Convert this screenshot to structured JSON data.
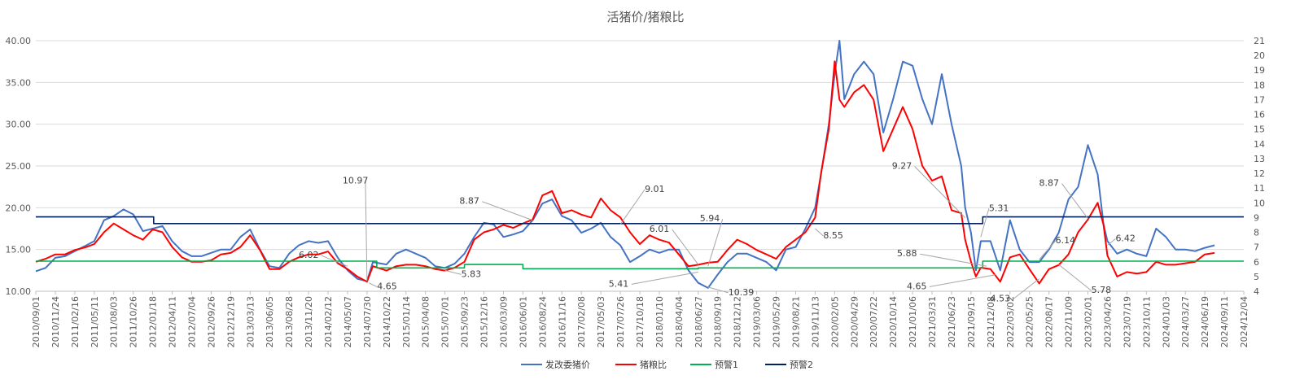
{
  "chart_data": {
    "type": "line",
    "title": "活猪价/猪粮比",
    "left_axis": {
      "min": 10,
      "max": 40,
      "ticks": [
        "10.00",
        "15.00",
        "20.00",
        "25.00",
        "30.00",
        "35.00",
        "40.00"
      ]
    },
    "right_axis": {
      "min": 4,
      "max": 21,
      "ticks": [
        "4",
        "5",
        "6",
        "7",
        "8",
        "9",
        "10",
        "11",
        "12",
        "13",
        "14",
        "15",
        "16",
        "17",
        "18",
        "19",
        "20",
        "21"
      ]
    },
    "x_ticks": [
      "2010/09/01",
      "2010/11/24",
      "2011/02/16",
      "2011/05/11",
      "2011/08/03",
      "2011/10/26",
      "2012/01/18",
      "2012/04/11",
      "2012/07/04",
      "2012/09/26",
      "2012/12/19",
      "2013/03/13",
      "2013/06/05",
      "2013/08/28",
      "2013/11/20",
      "2014/02/12",
      "2014/05/07",
      "2014/07/30",
      "2014/10/22",
      "2015/01/14",
      "2015/04/08",
      "2015/07/01",
      "2015/09/23",
      "2015/12/16",
      "2016/03/09",
      "2016/06/01",
      "2016/08/24",
      "2016/11/16",
      "2017/02/08",
      "2017/05/03",
      "2017/07/26",
      "2017/10/18",
      "2018/01/10",
      "2018/04/04",
      "2018/06/27",
      "2018/09/19",
      "2018/12/12",
      "2019/03/06",
      "2019/05/29",
      "2019/08/21",
      "2019/11/13",
      "2020/02/05",
      "2020/04/29",
      "2020/07/22",
      "2020/10/14",
      "2021/01/06",
      "2021/03/31",
      "2021/06/23",
      "2021/09/15",
      "2021/12/08",
      "2022/03/02",
      "2022/05/25",
      "2022/08/17",
      "2022/11/09",
      "2023/02/01",
      "2023/04/26",
      "2023/07/19",
      "2023/10/11",
      "2024/01/03",
      "2024/03/27",
      "2024/06/19",
      "2024/09/11",
      "2024/12/04"
    ],
    "grid": "horizontal",
    "legend_position": "bottom",
    "series": [
      {
        "name": "发改委猪价",
        "axis": "left",
        "color": "#4472C4",
        "points": [
          [
            0,
            12.4
          ],
          [
            0.5,
            12.8
          ],
          [
            1,
            14
          ],
          [
            1.5,
            14.2
          ],
          [
            2,
            14.8
          ],
          [
            2.6,
            15.5
          ],
          [
            3,
            16
          ],
          [
            3.5,
            18.5
          ],
          [
            4,
            19
          ],
          [
            4.5,
            19.8
          ],
          [
            5,
            19.2
          ],
          [
            5.5,
            17.2
          ],
          [
            6,
            17.5
          ],
          [
            6.5,
            17.8
          ],
          [
            7,
            16
          ],
          [
            7.5,
            14.8
          ],
          [
            8,
            14.2
          ],
          [
            8.5,
            14.2
          ],
          [
            9,
            14.6
          ],
          [
            9.5,
            15
          ],
          [
            10,
            15
          ],
          [
            10.5,
            16.5
          ],
          [
            11,
            17.4
          ],
          [
            11.5,
            15
          ],
          [
            12,
            13
          ],
          [
            12.5,
            12.8
          ],
          [
            13,
            14.5
          ],
          [
            13.5,
            15.5
          ],
          [
            14,
            16
          ],
          [
            14.5,
            15.8
          ],
          [
            15,
            16
          ],
          [
            15.5,
            14
          ],
          [
            16,
            12.5
          ],
          [
            16.5,
            11.5
          ],
          [
            17,
            11.2
          ],
          [
            17.3,
            13.5
          ],
          [
            18,
            13.2
          ],
          [
            18.5,
            14.5
          ],
          [
            19,
            15
          ],
          [
            19.5,
            14.5
          ],
          [
            20,
            14
          ],
          [
            20.5,
            13
          ],
          [
            21,
            12.8
          ],
          [
            21.5,
            13.3
          ],
          [
            22,
            14.5
          ],
          [
            22.5,
            16.5
          ],
          [
            23,
            18.2
          ],
          [
            23.5,
            18
          ],
          [
            24,
            16.5
          ],
          [
            24.5,
            16.8
          ],
          [
            25,
            17.2
          ],
          [
            25.5,
            18.5
          ],
          [
            26,
            20.5
          ],
          [
            26.5,
            21
          ],
          [
            27,
            19
          ],
          [
            27.5,
            18.5
          ],
          [
            28,
            17
          ],
          [
            28.5,
            17.5
          ],
          [
            29,
            18.2
          ],
          [
            29.5,
            16.5
          ],
          [
            30,
            15.5
          ],
          [
            30.5,
            13.5
          ],
          [
            31,
            14.2
          ],
          [
            31.5,
            15
          ],
          [
            32,
            14.6
          ],
          [
            32.5,
            15
          ],
          [
            33,
            15
          ],
          [
            33.5,
            12.5
          ],
          [
            34,
            11
          ],
          [
            34.5,
            10.4
          ],
          [
            35,
            12
          ],
          [
            35.5,
            13.5
          ],
          [
            36,
            14.5
          ],
          [
            36.5,
            14.5
          ],
          [
            37,
            14
          ],
          [
            37.5,
            13.5
          ],
          [
            38,
            12.5
          ],
          [
            38.5,
            15
          ],
          [
            39,
            15.3
          ],
          [
            39.5,
            17.5
          ],
          [
            40,
            20
          ],
          [
            40.3,
            24
          ],
          [
            40.7,
            30
          ],
          [
            41,
            36
          ],
          [
            41.25,
            40
          ],
          [
            41.5,
            33
          ],
          [
            42,
            36
          ],
          [
            42.5,
            37.5
          ],
          [
            43,
            36
          ],
          [
            43.5,
            29
          ],
          [
            44,
            33
          ],
          [
            44.5,
            37.5
          ],
          [
            45,
            37
          ],
          [
            45.5,
            33
          ],
          [
            46,
            30
          ],
          [
            46.5,
            36
          ],
          [
            47,
            30
          ],
          [
            47.5,
            25
          ],
          [
            47.7,
            20
          ],
          [
            48,
            17
          ],
          [
            48.25,
            12.5
          ],
          [
            48.5,
            16
          ],
          [
            49,
            16
          ],
          [
            49.5,
            12.5
          ],
          [
            50,
            18.5
          ],
          [
            50.5,
            15
          ],
          [
            51,
            13.5
          ],
          [
            51.5,
            13.5
          ],
          [
            52,
            15
          ],
          [
            52.5,
            17
          ],
          [
            53,
            21
          ],
          [
            53.5,
            22.5
          ],
          [
            54,
            27.5
          ],
          [
            54.5,
            24
          ],
          [
            54.8,
            18
          ],
          [
            55,
            16
          ],
          [
            55.5,
            14.5
          ],
          [
            56,
            15
          ],
          [
            56.5,
            14.5
          ],
          [
            57,
            14.2
          ],
          [
            57.5,
            17.5
          ],
          [
            58,
            16.5
          ],
          [
            58.5,
            15
          ],
          [
            59,
            15
          ],
          [
            59.5,
            14.8
          ],
          [
            60,
            15.2
          ],
          [
            60.5,
            15.5
          ]
        ]
      },
      {
        "name": "猪粮比",
        "axis": "right",
        "color": "#FF0000",
        "points": [
          [
            0,
            6.0
          ],
          [
            0.5,
            6.2
          ],
          [
            1,
            6.5
          ],
          [
            1.5,
            6.5
          ],
          [
            2,
            6.8
          ],
          [
            2.6,
            7.0
          ],
          [
            3,
            7.2
          ],
          [
            3.5,
            8.0
          ],
          [
            4,
            8.6
          ],
          [
            4.5,
            8.2
          ],
          [
            5,
            7.8
          ],
          [
            5.5,
            7.5
          ],
          [
            6,
            8.2
          ],
          [
            6.5,
            8.0
          ],
          [
            7,
            7.0
          ],
          [
            7.5,
            6.3
          ],
          [
            8,
            6.0
          ],
          [
            8.5,
            6.0
          ],
          [
            9,
            6.1
          ],
          [
            9.5,
            6.5
          ],
          [
            10,
            6.6
          ],
          [
            10.5,
            7.0
          ],
          [
            11,
            7.8
          ],
          [
            11.5,
            6.8
          ],
          [
            12,
            5.5
          ],
          [
            12.5,
            5.5
          ],
          [
            13,
            6.0
          ],
          [
            13.5,
            6.3
          ],
          [
            14,
            6.5
          ],
          [
            14.5,
            6.5
          ],
          [
            15,
            6.7
          ],
          [
            15.5,
            5.9
          ],
          [
            16,
            5.5
          ],
          [
            16.5,
            5.0
          ],
          [
            17,
            4.65
          ],
          [
            17.3,
            5.7
          ],
          [
            18,
            5.4
          ],
          [
            18.5,
            5.7
          ],
          [
            19,
            5.8
          ],
          [
            19.5,
            5.8
          ],
          [
            20,
            5.7
          ],
          [
            20.5,
            5.5
          ],
          [
            21,
            5.4
          ],
          [
            21.5,
            5.6
          ],
          [
            22,
            6.0
          ],
          [
            22.5,
            7.5
          ],
          [
            23,
            8.0
          ],
          [
            23.5,
            8.2
          ],
          [
            24,
            8.5
          ],
          [
            24.5,
            8.3
          ],
          [
            25,
            8.6
          ],
          [
            25.5,
            8.87
          ],
          [
            26,
            10.5
          ],
          [
            26.5,
            10.8
          ],
          [
            27,
            9.3
          ],
          [
            27.5,
            9.5
          ],
          [
            28,
            9.2
          ],
          [
            28.5,
            9.0
          ],
          [
            29,
            10.3
          ],
          [
            29.5,
            9.5
          ],
          [
            30,
            9.01
          ],
          [
            30.5,
            8.0
          ],
          [
            31,
            7.2
          ],
          [
            31.5,
            7.8
          ],
          [
            32,
            7.5
          ],
          [
            32.5,
            7.3
          ],
          [
            33,
            6.5
          ],
          [
            33.5,
            5.7
          ],
          [
            34,
            5.8
          ],
          [
            34.5,
            5.94
          ],
          [
            35,
            6.0
          ],
          [
            35.5,
            6.8
          ],
          [
            36,
            7.5
          ],
          [
            36.5,
            7.2
          ],
          [
            37,
            6.8
          ],
          [
            37.5,
            6.5
          ],
          [
            38,
            6.2
          ],
          [
            38.5,
            7.0
          ],
          [
            39,
            7.5
          ],
          [
            39.5,
            8.0
          ],
          [
            40,
            9.0
          ],
          [
            40.3,
            12
          ],
          [
            40.7,
            15
          ],
          [
            41,
            19.6
          ],
          [
            41.25,
            17
          ],
          [
            41.5,
            16.5
          ],
          [
            42,
            17.5
          ],
          [
            42.5,
            18.0
          ],
          [
            43,
            17
          ],
          [
            43.5,
            13.5
          ],
          [
            44,
            15
          ],
          [
            44.5,
            16.5
          ],
          [
            45,
            15
          ],
          [
            45.5,
            12.5
          ],
          [
            46,
            11.5
          ],
          [
            46.5,
            11.8
          ],
          [
            47,
            9.5
          ],
          [
            47.5,
            9.3
          ],
          [
            47.7,
            7.5
          ],
          [
            48,
            6.0
          ],
          [
            48.25,
            5.0
          ],
          [
            48.5,
            5.6
          ],
          [
            49,
            5.5
          ],
          [
            49.5,
            4.65
          ],
          [
            50,
            6.3
          ],
          [
            50.5,
            6.5
          ],
          [
            51,
            5.5
          ],
          [
            51.5,
            4.53
          ],
          [
            52,
            5.5
          ],
          [
            52.5,
            5.78
          ],
          [
            53,
            6.5
          ],
          [
            53.5,
            8.0
          ],
          [
            54,
            8.87
          ],
          [
            54.5,
            10.0
          ],
          [
            54.8,
            8.5
          ],
          [
            55,
            6.42
          ],
          [
            55.5,
            5.0
          ],
          [
            56,
            5.3
          ],
          [
            56.5,
            5.2
          ],
          [
            57,
            5.3
          ],
          [
            57.5,
            6.0
          ],
          [
            58,
            5.8
          ],
          [
            58.5,
            5.8
          ],
          [
            59,
            5.9
          ],
          [
            59.5,
            6.0
          ],
          [
            60,
            6.5
          ],
          [
            60.5,
            6.6
          ]
        ]
      },
      {
        "name": "预警1",
        "axis": "left",
        "color": "#00B050",
        "segments": [
          [
            0,
            17.5,
            13.6
          ],
          [
            17.5,
            22,
            12.8
          ],
          [
            22,
            25,
            13.2
          ],
          [
            25,
            34,
            12.7
          ],
          [
            34,
            48.6,
            12.8
          ],
          [
            48.6,
            63,
            13.6
          ]
        ]
      },
      {
        "name": "预警2",
        "axis": "left",
        "color": "#002060",
        "segments": [
          [
            0,
            6.05,
            18.9
          ],
          [
            6.05,
            48.6,
            18.1
          ],
          [
            48.6,
            63,
            18.9
          ]
        ]
      }
    ],
    "annotations": [
      {
        "text": "10.97",
        "x": 17.0,
        "y": 11.2
      },
      {
        "text": "6.02",
        "x": 16.0,
        "y": 13.0
      },
      {
        "text": "4.65",
        "x": 17.1,
        "y": 11.0
      },
      {
        "text": "5.83",
        "x": 21.0,
        "y": 12.5
      },
      {
        "text": "8.87",
        "x": 25.5,
        "y": 18.5
      },
      {
        "text": "9.01",
        "x": 30.0,
        "y": 18.0
      },
      {
        "text": "6.01",
        "x": 34.0,
        "y": 13.2
      },
      {
        "text": "5.94",
        "x": 34.5,
        "y": 13.0
      },
      {
        "text": "5.41",
        "x": 34.0,
        "y": 12.3
      },
      {
        "text": "10.39",
        "x": 34.5,
        "y": 10.5
      },
      {
        "text": "8.55",
        "x": 40.0,
        "y": 17.5
      },
      {
        "text": "9.27",
        "x": 47.7,
        "y": 18.8
      },
      {
        "text": "5.88",
        "x": 48.8,
        "y": 13.0
      },
      {
        "text": "4.65",
        "x": 49.3,
        "y": 12.0
      },
      {
        "text": "5.31",
        "x": 48.5,
        "y": 16.5
      },
      {
        "text": "6.14",
        "x": 51.5,
        "y": 13.8
      },
      {
        "text": "4.53",
        "x": 51.5,
        "y": 11.5
      },
      {
        "text": "8.87",
        "x": 54.0,
        "y": 18.7
      },
      {
        "text": "5.78",
        "x": 52.5,
        "y": 13.2
      },
      {
        "text": "6.42",
        "x": 55.0,
        "y": 15.5
      }
    ]
  }
}
